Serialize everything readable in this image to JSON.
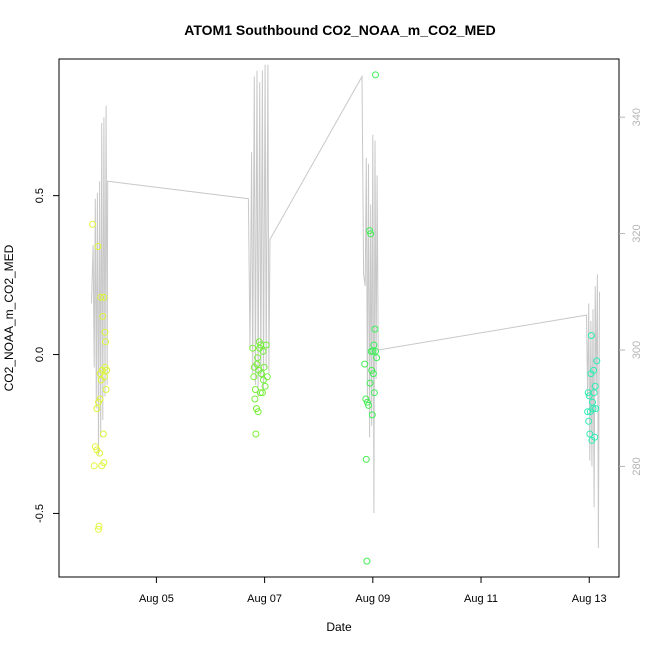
{
  "chart_data": {
    "type": "scatter",
    "title": "ATOM1 Southbound CO2_NOAA_m_CO2_MED",
    "xlabel": "Date",
    "ylabel": "CO2_NOAA_m_CO2_MED",
    "x_ticks": [
      "Aug 05",
      "Aug 07",
      "Aug 09",
      "Aug 11",
      "Aug 13"
    ],
    "x_tick_days": [
      5,
      7,
      9,
      11,
      13
    ],
    "xlim_days": [
      3.2,
      13.55
    ],
    "ylim": [
      -0.7,
      0.93
    ],
    "y_ticks": [
      -0.5,
      0.0,
      0.5
    ],
    "y_tick_labels": [
      "-0.5",
      "0.0",
      "0.5"
    ],
    "y2lim": [
      261,
      350
    ],
    "y2_ticks": [
      280,
      300,
      320,
      340
    ],
    "y2_tick_labels": [
      "280",
      "300",
      "320",
      "340"
    ],
    "colors": {
      "line": "#c8c8c8",
      "axis": "#000000",
      "right_axis": "#b5b5b5",
      "points_low_lat": "#e2f53c",
      "points_mid_lat": "#74ef38",
      "points_high_lat": "#2cee9a"
    },
    "series": [
      {
        "style": "points",
        "axis": "left",
        "values": [
          {
            "x": 3.82,
            "y": 0.41,
            "c": "#e3f53a"
          },
          {
            "x": 3.85,
            "y": -0.35,
            "c": "#e3f53a"
          },
          {
            "x": 3.87,
            "y": -0.29,
            "c": "#e3f53a"
          },
          {
            "x": 3.9,
            "y": -0.3,
            "c": "#e2f53b"
          },
          {
            "x": 3.9,
            "y": -0.17,
            "c": "#e2f53b"
          },
          {
            "x": 3.92,
            "y": 0.34,
            "c": "#e2f53b"
          },
          {
            "x": 3.93,
            "y": -0.55,
            "c": "#e2f53b"
          },
          {
            "x": 3.94,
            "y": -0.54,
            "c": "#e1f53b"
          },
          {
            "x": 3.93,
            "y": -0.15,
            "c": "#e1f53b"
          },
          {
            "x": 3.95,
            "y": -0.31,
            "c": "#e1f53b"
          },
          {
            "x": 3.96,
            "y": -0.14,
            "c": "#e1f53b"
          },
          {
            "x": 3.96,
            "y": -0.06,
            "c": "#e0f53b"
          },
          {
            "x": 3.97,
            "y": 0.18,
            "c": "#e0f53b"
          },
          {
            "x": 3.98,
            "y": -0.08,
            "c": "#e0f53b"
          },
          {
            "x": 3.99,
            "y": -0.35,
            "c": "#dff53c"
          },
          {
            "x": 4.0,
            "y": -0.05,
            "c": "#dff53c"
          },
          {
            "x": 4.01,
            "y": 0.12,
            "c": "#dff53c"
          },
          {
            "x": 4.02,
            "y": -0.25,
            "c": "#def53c"
          },
          {
            "x": 4.03,
            "y": 0.18,
            "c": "#def53c"
          },
          {
            "x": 4.03,
            "y": -0.34,
            "c": "#def53c"
          },
          {
            "x": 4.04,
            "y": -0.07,
            "c": "#ddf53c"
          },
          {
            "x": 4.05,
            "y": -0.04,
            "c": "#ddf53c"
          },
          {
            "x": 4.05,
            "y": 0.07,
            "c": "#ddf53c"
          },
          {
            "x": 4.06,
            "y": 0.04,
            "c": "#dcf53d"
          },
          {
            "x": 4.07,
            "y": -0.11,
            "c": "#dcf53d"
          },
          {
            "x": 4.08,
            "y": -0.05,
            "c": "#dcf53d"
          },
          {
            "x": 6.78,
            "y": 0.02,
            "c": "#7cef37"
          },
          {
            "x": 6.8,
            "y": -0.07,
            "c": "#7cef37"
          },
          {
            "x": 6.81,
            "y": -0.04,
            "c": "#7bef37"
          },
          {
            "x": 6.82,
            "y": -0.14,
            "c": "#7bef37"
          },
          {
            "x": 6.83,
            "y": -0.11,
            "c": "#7aef37"
          },
          {
            "x": 6.84,
            "y": -0.25,
            "c": "#7aef37"
          },
          {
            "x": 6.85,
            "y": -0.17,
            "c": "#79ef38"
          },
          {
            "x": 6.86,
            "y": -0.03,
            "c": "#79ef38"
          },
          {
            "x": 6.87,
            "y": -0.01,
            "c": "#78ef38"
          },
          {
            "x": 6.88,
            "y": -0.18,
            "c": "#78ef38"
          },
          {
            "x": 6.89,
            "y": -0.05,
            "c": "#77ef38"
          },
          {
            "x": 6.9,
            "y": 0.04,
            "c": "#77ef38"
          },
          {
            "x": 6.91,
            "y": 0.02,
            "c": "#76ef38"
          },
          {
            "x": 6.92,
            "y": -0.12,
            "c": "#76ef38"
          },
          {
            "x": 6.93,
            "y": 0.03,
            "c": "#75ef38"
          },
          {
            "x": 6.94,
            "y": -0.06,
            "c": "#75ef38"
          },
          {
            "x": 6.96,
            "y": -0.12,
            "c": "#74ef39"
          },
          {
            "x": 6.97,
            "y": 0.01,
            "c": "#74ef39"
          },
          {
            "x": 6.98,
            "y": -0.08,
            "c": "#73ef39"
          },
          {
            "x": 6.99,
            "y": -0.04,
            "c": "#73ef39"
          },
          {
            "x": 7.01,
            "y": -0.1,
            "c": "#72ef39"
          },
          {
            "x": 7.03,
            "y": 0.03,
            "c": "#72ef39"
          },
          {
            "x": 7.05,
            "y": -0.07,
            "c": "#71ef39"
          },
          {
            "x": 8.85,
            "y": -0.03,
            "c": "#47ee52"
          },
          {
            "x": 8.87,
            "y": -0.14,
            "c": "#47ee52"
          },
          {
            "x": 8.88,
            "y": -0.33,
            "c": "#46ee53"
          },
          {
            "x": 8.89,
            "y": -0.65,
            "c": "#46ee53"
          },
          {
            "x": 8.9,
            "y": -0.15,
            "c": "#45ee54"
          },
          {
            "x": 8.92,
            "y": -0.16,
            "c": "#45ee54"
          },
          {
            "x": 8.94,
            "y": 0.39,
            "c": "#44ee55"
          },
          {
            "x": 8.95,
            "y": -0.09,
            "c": "#44ee55"
          },
          {
            "x": 8.96,
            "y": 0.38,
            "c": "#43ee56"
          },
          {
            "x": 8.97,
            "y": 0.01,
            "c": "#43ee56"
          },
          {
            "x": 8.98,
            "y": -0.05,
            "c": "#42ee57"
          },
          {
            "x": 8.99,
            "y": -0.19,
            "c": "#42ee57"
          },
          {
            "x": 9.0,
            "y": 0.01,
            "c": "#41ee58"
          },
          {
            "x": 9.01,
            "y": -0.06,
            "c": "#41ee58"
          },
          {
            "x": 9.02,
            "y": 0.03,
            "c": "#40ee59"
          },
          {
            "x": 9.03,
            "y": -0.12,
            "c": "#40ee59"
          },
          {
            "x": 9.04,
            "y": 0.08,
            "c": "#3fee5a"
          },
          {
            "x": 9.05,
            "y": 0.01,
            "c": "#3fee5a"
          },
          {
            "x": 9.07,
            "y": -0.01,
            "c": "#3eee5b"
          },
          {
            "x": 9.05,
            "y": 0.88,
            "c": "#3eee5b"
          },
          {
            "x": 12.97,
            "y": -0.18,
            "c": "#2fedb0"
          },
          {
            "x": 12.98,
            "y": -0.12,
            "c": "#2fedb0"
          },
          {
            "x": 12.99,
            "y": -0.21,
            "c": "#2fedb1"
          },
          {
            "x": 13.0,
            "y": -0.13,
            "c": "#2fedb1"
          },
          {
            "x": 13.01,
            "y": -0.25,
            "c": "#2eedb2"
          },
          {
            "x": 13.02,
            "y": -0.18,
            "c": "#2eedb2"
          },
          {
            "x": 13.03,
            "y": -0.06,
            "c": "#2eedb3"
          },
          {
            "x": 13.04,
            "y": 0.06,
            "c": "#2eedb3"
          },
          {
            "x": 13.05,
            "y": -0.27,
            "c": "#2dedb4"
          },
          {
            "x": 13.06,
            "y": -0.15,
            "c": "#2dedb4"
          },
          {
            "x": 13.07,
            "y": -0.17,
            "c": "#2dedb5"
          },
          {
            "x": 13.08,
            "y": -0.05,
            "c": "#2dedb5"
          },
          {
            "x": 13.09,
            "y": -0.12,
            "c": "#2cedb6"
          },
          {
            "x": 13.1,
            "y": -0.26,
            "c": "#2cedb6"
          },
          {
            "x": 13.11,
            "y": -0.1,
            "c": "#2cedb7"
          },
          {
            "x": 13.12,
            "y": -0.17,
            "c": "#2cedb7"
          },
          {
            "x": 13.14,
            "y": -0.02,
            "c": "#2bedb8"
          }
        ]
      },
      {
        "style": "line",
        "axis": "right",
        "values": [
          {
            "x": 3.8,
            "y": 308
          },
          {
            "x": 3.83,
            "y": 318
          },
          {
            "x": 3.85,
            "y": 297
          },
          {
            "x": 3.87,
            "y": 326
          },
          {
            "x": 3.89,
            "y": 290
          },
          {
            "x": 3.91,
            "y": 327
          },
          {
            "x": 3.93,
            "y": 282
          },
          {
            "x": 3.95,
            "y": 329
          },
          {
            "x": 3.97,
            "y": 285
          },
          {
            "x": 3.99,
            "y": 339
          },
          {
            "x": 4.01,
            "y": 288
          },
          {
            "x": 4.03,
            "y": 340
          },
          {
            "x": 4.05,
            "y": 292
          },
          {
            "x": 4.07,
            "y": 342
          },
          {
            "x": 4.09,
            "y": 294
          },
          {
            "x": 4.1,
            "y": 329
          },
          {
            "x": 6.7,
            "y": 326
          },
          {
            "x": 6.73,
            "y": 300
          },
          {
            "x": 6.76,
            "y": 334
          },
          {
            "x": 6.78,
            "y": 296
          },
          {
            "x": 6.81,
            "y": 347
          },
          {
            "x": 6.83,
            "y": 294
          },
          {
            "x": 6.86,
            "y": 348
          },
          {
            "x": 6.88,
            "y": 292
          },
          {
            "x": 6.91,
            "y": 346
          },
          {
            "x": 6.93,
            "y": 295
          },
          {
            "x": 6.96,
            "y": 348
          },
          {
            "x": 6.98,
            "y": 293
          },
          {
            "x": 7.01,
            "y": 349
          },
          {
            "x": 7.03,
            "y": 297
          },
          {
            "x": 7.06,
            "y": 349
          },
          {
            "x": 7.08,
            "y": 296
          },
          {
            "x": 7.1,
            "y": 319
          },
          {
            "x": 8.8,
            "y": 347
          },
          {
            "x": 8.83,
            "y": 313
          },
          {
            "x": 8.86,
            "y": 311
          },
          {
            "x": 8.88,
            "y": 333
          },
          {
            "x": 8.9,
            "y": 291
          },
          {
            "x": 8.92,
            "y": 332
          },
          {
            "x": 8.94,
            "y": 285
          },
          {
            "x": 8.96,
            "y": 325
          },
          {
            "x": 8.98,
            "y": 287
          },
          {
            "x": 9.0,
            "y": 337
          },
          {
            "x": 9.02,
            "y": 272
          },
          {
            "x": 9.04,
            "y": 336
          },
          {
            "x": 9.06,
            "y": 295
          },
          {
            "x": 9.08,
            "y": 330
          },
          {
            "x": 9.1,
            "y": 300
          },
          {
            "x": 12.95,
            "y": 306
          },
          {
            "x": 12.97,
            "y": 292
          },
          {
            "x": 12.99,
            "y": 308
          },
          {
            "x": 13.01,
            "y": 281
          },
          {
            "x": 13.03,
            "y": 305
          },
          {
            "x": 13.05,
            "y": 280
          },
          {
            "x": 13.07,
            "y": 307
          },
          {
            "x": 13.09,
            "y": 273
          },
          {
            "x": 13.11,
            "y": 311
          },
          {
            "x": 13.13,
            "y": 293
          },
          {
            "x": 13.15,
            "y": 313
          },
          {
            "x": 13.17,
            "y": 266
          },
          {
            "x": 13.19,
            "y": 310
          }
        ]
      }
    ]
  }
}
